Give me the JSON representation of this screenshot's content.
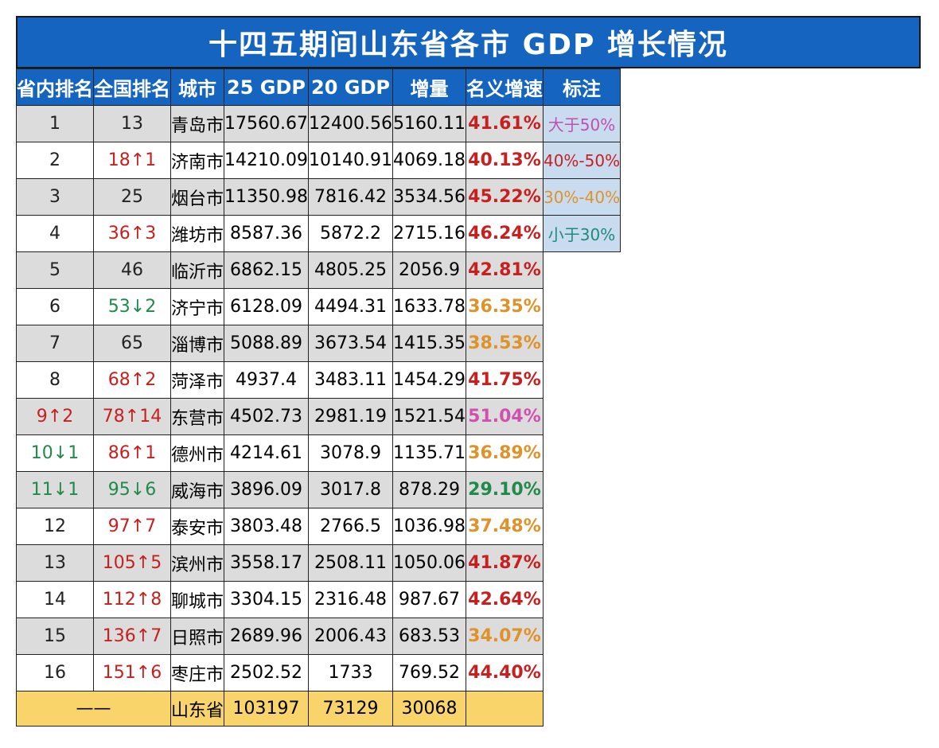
{
  "title": "十四五期间山东省各市 GDP 增长情况",
  "headers": [
    "省内排名",
    "全国排名",
    "城市",
    "25 GDP",
    "20 GDP",
    "增量",
    "名义增速",
    "标注"
  ],
  "colors": {
    "header": "#1565c0",
    "up": "#c8201e",
    "down": "#1f8a4a",
    "gt50": "#d050b0",
    "r40_50": "#c8201e",
    "r30_40": "#e0922a",
    "lt30": "#1f8a4a",
    "total": "#f8d46a"
  },
  "legend": [
    {
      "label": "大于50%",
      "color": "#c050b0"
    },
    {
      "label": "40%-50%",
      "color": "#c8201e"
    },
    {
      "label": "30%-40%",
      "color": "#e0922a"
    },
    {
      "label": "小于30%",
      "color": "#1f8a7a"
    }
  ],
  "rows": [
    {
      "prov": "1",
      "nat": "13",
      "city": "青岛市",
      "gdp25": "17560.67",
      "gdp20": "12400.56",
      "inc": "5160.11",
      "rate": "41.61%"
    },
    {
      "prov": "2",
      "nat": "18↑1",
      "city": "济南市",
      "gdp25": "14210.09",
      "gdp20": "10140.91",
      "inc": "4069.18",
      "rate": "40.13%"
    },
    {
      "prov": "3",
      "nat": "25",
      "city": "烟台市",
      "gdp25": "11350.98",
      "gdp20": "7816.42",
      "inc": "3534.56",
      "rate": "45.22%"
    },
    {
      "prov": "4",
      "nat": "36↑3",
      "city": "潍坊市",
      "gdp25": "8587.36",
      "gdp20": "5872.2",
      "inc": "2715.16",
      "rate": "46.24%"
    },
    {
      "prov": "5",
      "nat": "46",
      "city": "临沂市",
      "gdp25": "6862.15",
      "gdp20": "4805.25",
      "inc": "2056.9",
      "rate": "42.81%"
    },
    {
      "prov": "6",
      "nat": "53↓2",
      "city": "济宁市",
      "gdp25": "6128.09",
      "gdp20": "4494.31",
      "inc": "1633.78",
      "rate": "36.35%"
    },
    {
      "prov": "7",
      "nat": "65",
      "city": "淄博市",
      "gdp25": "5088.89",
      "gdp20": "3673.54",
      "inc": "1415.35",
      "rate": "38.53%"
    },
    {
      "prov": "8",
      "nat": "68↑2",
      "city": "菏泽市",
      "gdp25": "4937.4",
      "gdp20": "3483.11",
      "inc": "1454.29",
      "rate": "41.75%"
    },
    {
      "prov": "9↑2",
      "nat": "78↑14",
      "city": "东营市",
      "gdp25": "4502.73",
      "gdp20": "2981.19",
      "inc": "1521.54",
      "rate": "51.04%"
    },
    {
      "prov": "10↓1",
      "nat": "86↑1",
      "city": "德州市",
      "gdp25": "4214.61",
      "gdp20": "3078.9",
      "inc": "1135.71",
      "rate": "36.89%"
    },
    {
      "prov": "11↓1",
      "nat": "95↓6",
      "city": "威海市",
      "gdp25": "3896.09",
      "gdp20": "3017.8",
      "inc": "878.29",
      "rate": "29.10%"
    },
    {
      "prov": "12",
      "nat": "97↑7",
      "city": "泰安市",
      "gdp25": "3803.48",
      "gdp20": "2766.5",
      "inc": "1036.98",
      "rate": "37.48%"
    },
    {
      "prov": "13",
      "nat": "105↑5",
      "city": "滨州市",
      "gdp25": "3558.17",
      "gdp20": "2508.11",
      "inc": "1050.06",
      "rate": "41.87%"
    },
    {
      "prov": "14",
      "nat": "112↑8",
      "city": "聊城市",
      "gdp25": "3304.15",
      "gdp20": "2316.48",
      "inc": "987.67",
      "rate": "42.64%"
    },
    {
      "prov": "15",
      "nat": "136↑7",
      "city": "日照市",
      "gdp25": "2689.96",
      "gdp20": "2006.43",
      "inc": "683.53",
      "rate": "34.07%"
    },
    {
      "prov": "16",
      "nat": "151↑6",
      "city": "枣庄市",
      "gdp25": "2502.52",
      "gdp20": "1733",
      "inc": "769.52",
      "rate": "44.40%"
    }
  ],
  "total": {
    "rank": "——",
    "city": "山东省",
    "gdp25": "103197",
    "gdp20": "73129",
    "inc": "30068"
  }
}
